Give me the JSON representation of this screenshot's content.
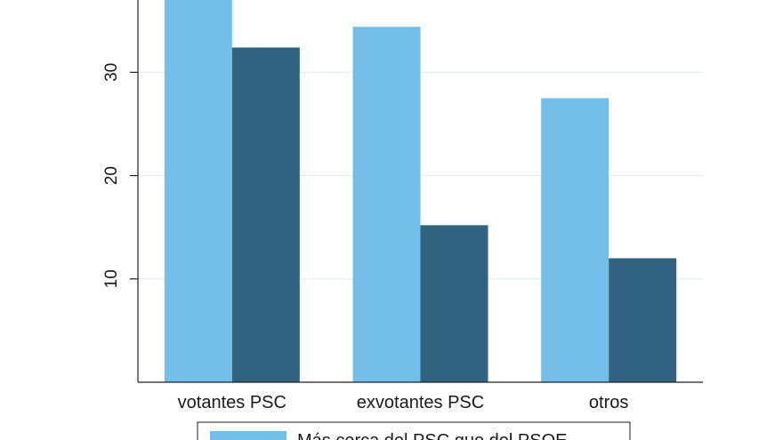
{
  "chart_data": {
    "type": "bar",
    "categories": [
      "votantes PSC",
      "exvotantes PSC",
      "otros"
    ],
    "series": [
      {
        "name": "Más cerca del PSC que del PSOE",
        "values": [
          37,
          34.4,
          27.5
        ],
        "color": "#74bfea"
      },
      {
        "name": "",
        "values": [
          32.4,
          15.2,
          12
        ],
        "color": "#31627f"
      }
    ],
    "ylim": [
      0,
      37
    ],
    "yticks": [
      10,
      20,
      30
    ],
    "grid": true,
    "legend_position": "bottom",
    "legend_text": "Más cerca del PSC que del PSOE"
  }
}
